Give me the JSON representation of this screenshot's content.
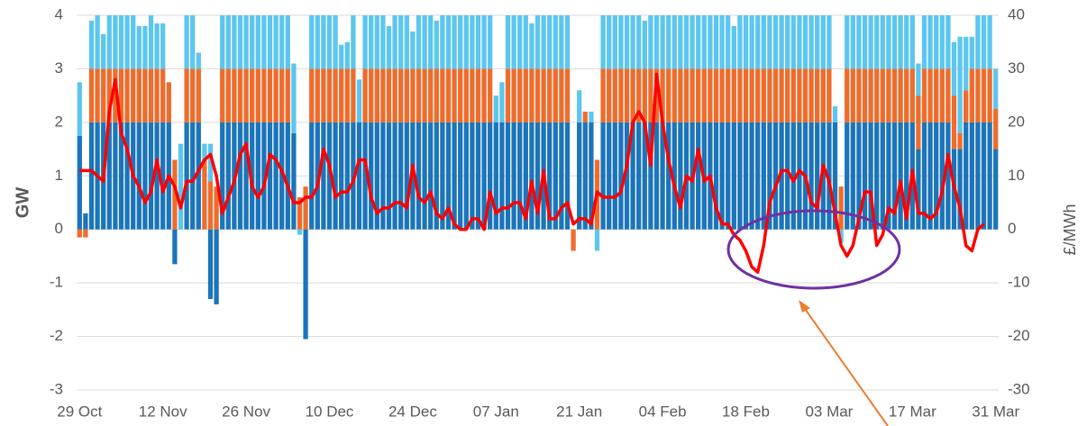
{
  "chart_data": {
    "type": "bar",
    "ylabel": "GW",
    "y2label": "£/MWh",
    "ylim": [
      -3,
      4
    ],
    "yticks": [
      -3,
      -2,
      -1,
      0,
      1,
      2,
      3,
      4
    ],
    "y2lim": [
      -30,
      40
    ],
    "y2ticks": [
      -30,
      -20,
      -10,
      0,
      10,
      20,
      30,
      40
    ],
    "grid": true,
    "stacked": true,
    "categories": [
      "29 Oct",
      null,
      null,
      null,
      null,
      null,
      null,
      null,
      null,
      null,
      null,
      null,
      null,
      null,
      "12 Nov",
      null,
      null,
      null,
      null,
      null,
      null,
      null,
      null,
      null,
      null,
      null,
      null,
      null,
      "26 Nov",
      null,
      null,
      null,
      null,
      null,
      null,
      null,
      null,
      null,
      null,
      null,
      null,
      null,
      "10 Dec",
      null,
      null,
      null,
      null,
      null,
      null,
      null,
      null,
      null,
      null,
      null,
      null,
      null,
      "24 Dec",
      null,
      null,
      null,
      null,
      null,
      null,
      null,
      null,
      null,
      null,
      null,
      null,
      null,
      "07 Jan",
      null,
      null,
      null,
      null,
      null,
      null,
      null,
      null,
      null,
      null,
      null,
      null,
      null,
      "21 Jan",
      null,
      null,
      null,
      null,
      null,
      null,
      null,
      null,
      null,
      null,
      null,
      null,
      null,
      "04 Feb",
      null,
      null,
      null,
      null,
      null,
      null,
      null,
      null,
      null,
      null,
      null,
      null,
      null,
      "18 Feb",
      null,
      null,
      null,
      null,
      null,
      null,
      null,
      null,
      null,
      null,
      null,
      null,
      null,
      "03 Mar",
      null,
      null,
      null,
      null,
      null,
      null,
      null,
      null,
      null,
      null,
      null,
      null,
      null,
      "17 Mar",
      null,
      null,
      null,
      null,
      null,
      null,
      null,
      null,
      null,
      null,
      null,
      null,
      null,
      "31 Mar"
    ],
    "series": [
      {
        "color": "#1b75bb",
        "values": [
          1.75,
          0.3,
          2,
          2,
          2,
          2,
          2,
          2,
          2,
          2,
          2,
          2,
          2,
          2,
          2,
          2,
          -0.65,
          0,
          2,
          2,
          2,
          0,
          -1.3,
          -1.4,
          2,
          2,
          2,
          2,
          2,
          2,
          2,
          2,
          2,
          2,
          2,
          2,
          1.8,
          0,
          -2.05,
          2,
          2,
          2,
          2,
          2,
          2,
          2,
          2,
          2,
          2,
          2,
          2,
          2,
          2,
          2,
          2,
          2,
          2,
          2,
          2,
          2,
          2,
          2,
          2,
          2,
          2,
          2,
          2,
          2,
          2,
          2,
          2,
          2,
          2,
          2,
          2,
          2,
          2,
          2,
          2,
          2,
          2,
          2,
          2,
          0,
          2,
          2,
          2,
          0,
          2,
          2,
          2,
          2,
          2,
          2,
          2,
          2,
          2,
          2,
          2,
          2,
          2,
          2,
          2,
          2,
          2,
          2,
          2,
          2,
          2,
          2,
          2,
          2,
          2,
          2,
          2,
          2,
          2,
          2,
          2,
          2,
          2,
          2,
          2,
          2,
          2,
          2,
          2,
          2,
          0,
          2,
          2,
          2,
          2,
          2,
          2,
          2,
          2,
          2,
          2,
          2,
          2,
          1.5,
          2,
          2,
          2,
          2,
          2,
          1.5,
          1.5,
          2,
          2,
          2,
          2,
          2,
          1.5
        ]
      },
      {
        "color": "#ee6c2c",
        "values": [
          -0.15,
          -0.15,
          1,
          1,
          1,
          1,
          1,
          1,
          1,
          1,
          1,
          1,
          1,
          1,
          1,
          0.75,
          1.3,
          0,
          1,
          1,
          1,
          1.3,
          0.9,
          0.8,
          1,
          1,
          1,
          1,
          1,
          1,
          1,
          1,
          1,
          1,
          1,
          1,
          0,
          0.6,
          0.8,
          1,
          1,
          1,
          1,
          1,
          1,
          1,
          1,
          0,
          1,
          1,
          1,
          1,
          1,
          1,
          1,
          1,
          1,
          1,
          1,
          1,
          1,
          1,
          1,
          1,
          1,
          1,
          1,
          1,
          1,
          1,
          0,
          0,
          1,
          1,
          1,
          1,
          1,
          1,
          1,
          1,
          1,
          1,
          1,
          -0.4,
          0,
          0.2,
          0,
          1.3,
          1,
          1,
          1,
          1,
          1,
          1,
          1,
          1,
          1,
          1,
          1,
          1,
          1,
          1,
          1,
          1,
          1,
          1,
          1,
          1,
          1,
          1,
          1,
          1,
          1,
          1,
          1,
          1,
          1,
          1,
          1,
          1,
          1,
          1,
          1,
          1,
          1,
          1,
          1,
          0,
          0.8,
          1,
          1,
          1,
          1,
          1,
          1,
          1,
          1,
          1,
          1,
          1,
          1,
          1,
          1,
          1,
          1,
          1,
          1,
          1,
          0.3,
          0.6,
          1,
          1,
          1,
          1,
          0.75
        ]
      },
      {
        "color": "#5cc6ee",
        "values": [
          1,
          0,
          0.9,
          1,
          0.65,
          1,
          1,
          1,
          1,
          1,
          0.8,
          0.8,
          1,
          0.85,
          0.85,
          0,
          0,
          1.6,
          1,
          1,
          0.3,
          0.3,
          0.7,
          0,
          1,
          1,
          1,
          1,
          1,
          1,
          1,
          1,
          1,
          1,
          1,
          1,
          1.3,
          -0.1,
          0,
          1,
          1,
          1,
          1,
          1,
          0.45,
          0.5,
          1,
          0.8,
          1,
          1,
          1,
          1,
          0.8,
          1,
          1,
          1,
          0.7,
          1,
          1,
          1,
          0.9,
          1,
          1,
          1,
          1,
          1,
          1,
          1,
          1,
          1,
          0.5,
          0.75,
          1,
          1,
          1,
          1,
          0.85,
          1,
          1,
          1,
          1,
          1,
          1,
          0,
          0.6,
          0,
          0.2,
          -0.4,
          1,
          1,
          1,
          1,
          1,
          1,
          1,
          0.9,
          1,
          1,
          1,
          1,
          1,
          1,
          1,
          1,
          1,
          1,
          1,
          1,
          1,
          1,
          0.8,
          1,
          1,
          1,
          1,
          1,
          1,
          1,
          1,
          1,
          1,
          1,
          1,
          1,
          1,
          1,
          1,
          0.3,
          -0.25,
          1,
          1,
          1,
          1,
          1,
          1,
          1,
          1,
          1,
          1,
          1,
          1,
          0.6,
          1,
          1,
          1,
          1,
          1,
          1,
          1.8,
          1,
          0.6,
          1,
          1,
          1,
          0.75
        ]
      },
      {
        "type": "line",
        "axis": "y2",
        "color": "#ff0000",
        "values": [
          11,
          11,
          11,
          10,
          9,
          22,
          28,
          18,
          15,
          10,
          8,
          5,
          7,
          13,
          7,
          10,
          8,
          4,
          9,
          9,
          11,
          13,
          14,
          10,
          3,
          6,
          9,
          14,
          16,
          8,
          6,
          8,
          14,
          13,
          11,
          8,
          5,
          5,
          6,
          6,
          8,
          15,
          12,
          6,
          7,
          7,
          9,
          13,
          13,
          6,
          3,
          4,
          4,
          5,
          5,
          4,
          12,
          6,
          5,
          7,
          3,
          2,
          4,
          1,
          0,
          0,
          2,
          2,
          0,
          7,
          3,
          4,
          4,
          5,
          5,
          2,
          9,
          3,
          11,
          2,
          2,
          4,
          5,
          1,
          2,
          2,
          1,
          7,
          6,
          6,
          6,
          7,
          12,
          20,
          22,
          20,
          12,
          29,
          20,
          13,
          8,
          4,
          10,
          9,
          15,
          9,
          10,
          4,
          1,
          1,
          -1,
          -2,
          -4,
          -7,
          -8,
          -3,
          5,
          8,
          11,
          11,
          9,
          11,
          10,
          5,
          4,
          12,
          9,
          3,
          -3,
          -5,
          -3,
          2,
          7,
          7,
          -3,
          -1,
          4,
          3,
          9,
          2,
          11,
          3,
          3,
          2,
          3,
          7,
          14,
          8,
          4,
          -3,
          -4,
          0,
          1,
          null,
          null
        ]
      }
    ]
  }
}
